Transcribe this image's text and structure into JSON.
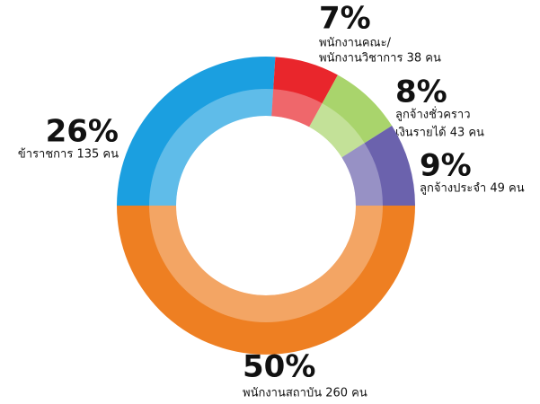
{
  "chart_data": {
    "type": "donut",
    "categories": [
      [
        "พนักงานสถาบัน 260 คน"
      ],
      [
        "ข้าราชการ 135 คน"
      ],
      [
        "พนักงานคณะ/",
        "พนักงานวิชาการ 38 คน"
      ],
      [
        "ลูกจ้างชั่วคราว",
        "เงินรายได้ 43 คน"
      ],
      [
        "ลูกจ้างประจำ 49 คน"
      ]
    ],
    "values": [
      50,
      26,
      7,
      8,
      9
    ],
    "value_labels": [
      "50%",
      "26%",
      "7%",
      "8%",
      "9%"
    ],
    "colors": [
      "#ee7f22",
      "#1b9fe0",
      "#e9262c",
      "#a9d46c",
      "#6b62ad"
    ]
  }
}
